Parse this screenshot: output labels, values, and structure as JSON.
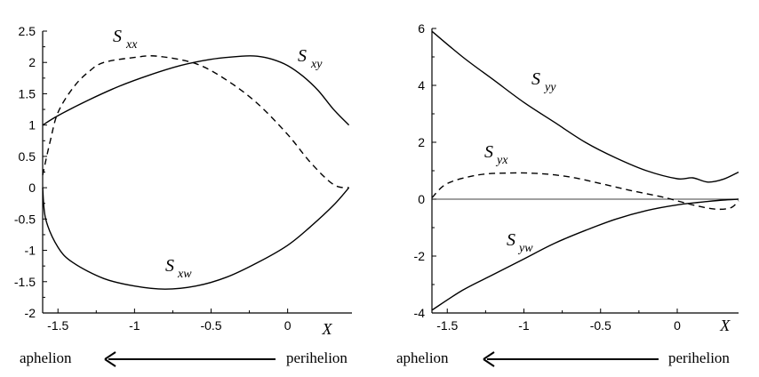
{
  "colors": {
    "ink": "#000000",
    "background": "#ffffff"
  },
  "chart_data": [
    {
      "type": "line",
      "xlabel": "X",
      "ylabel": "",
      "xlim": [
        -1.6,
        0.42
      ],
      "ylim": [
        -2,
        2.5
      ],
      "xticks": [
        -1.5,
        -1,
        -0.5,
        0
      ],
      "xtick_labels": [
        "-1.5",
        "-1",
        "-0.5",
        "0"
      ],
      "yticks": [
        -2,
        -1.5,
        -1,
        -0.5,
        0,
        0.5,
        1,
        1.5,
        2,
        2.5
      ],
      "ytick_labels": [
        "-2",
        "-1.5",
        "-1",
        "-0.5",
        "0",
        "0.5",
        "1",
        "1.5",
        "2",
        "2.5"
      ],
      "grid": false,
      "legend": "none",
      "series": [
        {
          "name": "Sxx",
          "label_main": "S",
          "label_sub": "xx",
          "style": "solid",
          "points": [
            [
              -1.6,
              1.0
            ],
            [
              -1.5,
              1.15
            ],
            [
              -1.3,
              1.4
            ],
            [
              -1.1,
              1.62
            ],
            [
              -0.9,
              1.8
            ],
            [
              -0.7,
              1.95
            ],
            [
              -0.5,
              2.05
            ],
            [
              -0.3,
              2.1
            ],
            [
              -0.2,
              2.1
            ],
            [
              -0.1,
              2.05
            ],
            [
              0.0,
              1.95
            ],
            [
              0.1,
              1.78
            ],
            [
              0.2,
              1.55
            ],
            [
              0.3,
              1.25
            ],
            [
              0.4,
              1.0
            ]
          ]
        },
        {
          "name": "Sxy",
          "label_main": "S",
          "label_sub": "xy",
          "style": "dashed",
          "points": [
            [
              -1.6,
              0.2
            ],
            [
              -1.55,
              0.75
            ],
            [
              -1.5,
              1.2
            ],
            [
              -1.4,
              1.6
            ],
            [
              -1.3,
              1.85
            ],
            [
              -1.2,
              2.0
            ],
            [
              -1.0,
              2.08
            ],
            [
              -0.85,
              2.1
            ],
            [
              -0.6,
              1.98
            ],
            [
              -0.4,
              1.72
            ],
            [
              -0.2,
              1.35
            ],
            [
              0.0,
              0.85
            ],
            [
              0.15,
              0.4
            ],
            [
              0.3,
              0.05
            ],
            [
              0.4,
              0.0
            ]
          ]
        },
        {
          "name": "Sxw",
          "label_main": "S",
          "label_sub": "xw",
          "style": "solid",
          "points": [
            [
              -1.6,
              0.0
            ],
            [
              -1.58,
              -0.5
            ],
            [
              -1.5,
              -0.95
            ],
            [
              -1.4,
              -1.2
            ],
            [
              -1.2,
              -1.45
            ],
            [
              -1.0,
              -1.57
            ],
            [
              -0.8,
              -1.62
            ],
            [
              -0.6,
              -1.57
            ],
            [
              -0.4,
              -1.43
            ],
            [
              -0.2,
              -1.2
            ],
            [
              0.0,
              -0.92
            ],
            [
              0.15,
              -0.62
            ],
            [
              0.3,
              -0.28
            ],
            [
              0.4,
              0.0
            ]
          ]
        }
      ],
      "caption": {
        "left": "aphelion",
        "right": "perihelion"
      }
    },
    {
      "type": "line",
      "xlabel": "X",
      "ylabel": "",
      "xlim": [
        -1.6,
        0.4
      ],
      "ylim": [
        -4,
        6
      ],
      "xticks": [
        -1.5,
        -1,
        -0.5,
        0,
        0.3
      ],
      "xtick_labels": [
        "-1.5",
        "-1",
        "-0.5",
        "0",
        "X"
      ],
      "yticks": [
        -4,
        -2,
        0,
        2,
        4,
        6
      ],
      "ytick_labels": [
        "-4",
        "-2",
        "0",
        "2",
        "4",
        "6"
      ],
      "grid": false,
      "legend": "none",
      "zero_line": true,
      "series": [
        {
          "name": "Syy",
          "label_main": "S",
          "label_sub": "yy",
          "style": "solid",
          "points": [
            [
              -1.6,
              5.9
            ],
            [
              -1.4,
              5.0
            ],
            [
              -1.2,
              4.2
            ],
            [
              -1.0,
              3.4
            ],
            [
              -0.8,
              2.7
            ],
            [
              -0.6,
              2.0
            ],
            [
              -0.4,
              1.45
            ],
            [
              -0.2,
              1.0
            ],
            [
              0.0,
              0.72
            ],
            [
              0.1,
              0.75
            ],
            [
              0.2,
              0.6
            ],
            [
              0.3,
              0.7
            ],
            [
              0.4,
              0.95
            ]
          ]
        },
        {
          "name": "Syx",
          "label_main": "S",
          "label_sub": "yx",
          "style": "dashed",
          "points": [
            [
              -1.6,
              0.05
            ],
            [
              -1.5,
              0.55
            ],
            [
              -1.3,
              0.85
            ],
            [
              -1.1,
              0.92
            ],
            [
              -0.9,
              0.9
            ],
            [
              -0.7,
              0.78
            ],
            [
              -0.5,
              0.55
            ],
            [
              -0.3,
              0.3
            ],
            [
              -0.1,
              0.08
            ],
            [
              0.1,
              -0.2
            ],
            [
              0.25,
              -0.35
            ],
            [
              0.35,
              -0.3
            ],
            [
              0.4,
              -0.05
            ]
          ]
        },
        {
          "name": "Syw",
          "label_main": "S",
          "label_sub": "yw",
          "style": "solid",
          "points": [
            [
              -1.6,
              -3.9
            ],
            [
              -1.4,
              -3.2
            ],
            [
              -1.2,
              -2.65
            ],
            [
              -1.0,
              -2.1
            ],
            [
              -0.8,
              -1.55
            ],
            [
              -0.6,
              -1.1
            ],
            [
              -0.4,
              -0.7
            ],
            [
              -0.2,
              -0.4
            ],
            [
              0.0,
              -0.2
            ],
            [
              0.2,
              -0.08
            ],
            [
              0.3,
              -0.03
            ],
            [
              0.4,
              0.0
            ]
          ]
        }
      ],
      "caption": {
        "left": "aphelion",
        "right": "perihelion"
      }
    }
  ]
}
